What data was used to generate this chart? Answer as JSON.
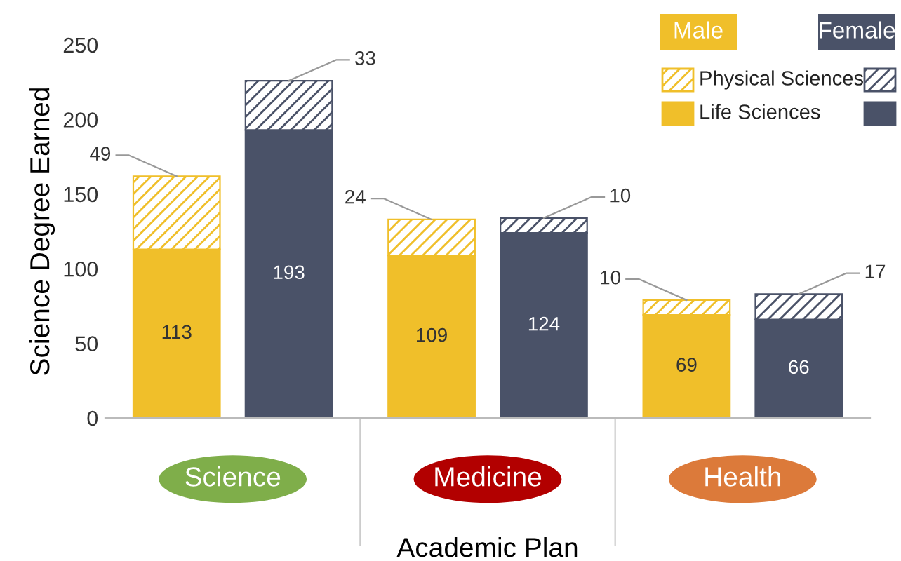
{
  "chart_data": {
    "type": "bar",
    "stacked": true,
    "xlabel": "Academic Plan",
    "ylabel": "Science Degree Earned",
    "categories": [
      null,
      null,
      null,
      null,
      null,
      null
    ],
    "annotations": [
      "Science",
      "Medicine",
      "Health",
      "Male",
      "Female"
    ],
    "series": [
      {
        "name": "Life Sciences",
        "colors": [
          "#f0bf2a",
          "#4a5268",
          "#f0bf2a",
          "#4a5268",
          "#f0bf2a",
          "#4a5268"
        ],
        "values": [
          113,
          193,
          109,
          124,
          69,
          66
        ]
      },
      {
        "name": "Physical Sciences",
        "colors": [
          "#f0bf2a",
          "#4a5268",
          "#f0bf2a",
          "#4a5268",
          "#f0bf2a",
          "#4a5268"
        ],
        "values": [
          49,
          33,
          24,
          10,
          10,
          17
        ]
      }
    ],
    "ylim": [
      0,
      250
    ],
    "yticks": [
      0,
      50,
      100,
      150,
      200,
      250
    ],
    "grid": false,
    "legend": "top right",
    "data_labels": true
  }
}
